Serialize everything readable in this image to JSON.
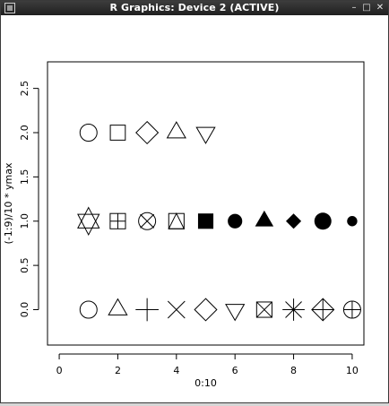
{
  "window": {
    "title": "R Graphics: Device 2 (ACTIVE)",
    "icons": [
      "r-logo-icon",
      "minimize-icon",
      "maximize-icon",
      "close-icon"
    ]
  },
  "chart_data": {
    "type": "scatter",
    "title": "",
    "xlabel": "0:10",
    "ylabel": "(-1:9)/10 * ymax",
    "xlim": [
      -0.4,
      10.4
    ],
    "ylim": [
      -0.4,
      2.8
    ],
    "x_ticks": [
      "0",
      "2",
      "4",
      "6",
      "8",
      "10"
    ],
    "y_ticks": [
      "0.0",
      "0.5",
      "1.0",
      "1.5",
      "2.0",
      "2.5"
    ],
    "grid": false,
    "points": [
      {
        "x": 1,
        "y": 0,
        "pch": 1
      },
      {
        "x": 2,
        "y": 0,
        "pch": 2
      },
      {
        "x": 3,
        "y": 0,
        "pch": 3
      },
      {
        "x": 4,
        "y": 0,
        "pch": 4
      },
      {
        "x": 5,
        "y": 0,
        "pch": 5
      },
      {
        "x": 6,
        "y": 0,
        "pch": 6
      },
      {
        "x": 7,
        "y": 0,
        "pch": 7
      },
      {
        "x": 8,
        "y": 0,
        "pch": 8
      },
      {
        "x": 9,
        "y": 0,
        "pch": 9
      },
      {
        "x": 10,
        "y": 0,
        "pch": 10
      },
      {
        "x": 1,
        "y": 1,
        "pch": 11
      },
      {
        "x": 2,
        "y": 1,
        "pch": 12
      },
      {
        "x": 3,
        "y": 1,
        "pch": 13
      },
      {
        "x": 4,
        "y": 1,
        "pch": 14
      },
      {
        "x": 5,
        "y": 1,
        "pch": 15
      },
      {
        "x": 6,
        "y": 1,
        "pch": 16
      },
      {
        "x": 7,
        "y": 1,
        "pch": 17
      },
      {
        "x": 8,
        "y": 1,
        "pch": 18
      },
      {
        "x": 9,
        "y": 1,
        "pch": 19
      },
      {
        "x": 10,
        "y": 1,
        "pch": 20
      },
      {
        "x": 1,
        "y": 2,
        "pch": 21
      },
      {
        "x": 2,
        "y": 2,
        "pch": 22
      },
      {
        "x": 3,
        "y": 2,
        "pch": 23
      },
      {
        "x": 4,
        "y": 2,
        "pch": 24
      },
      {
        "x": 5,
        "y": 2,
        "pch": 25
      }
    ]
  }
}
